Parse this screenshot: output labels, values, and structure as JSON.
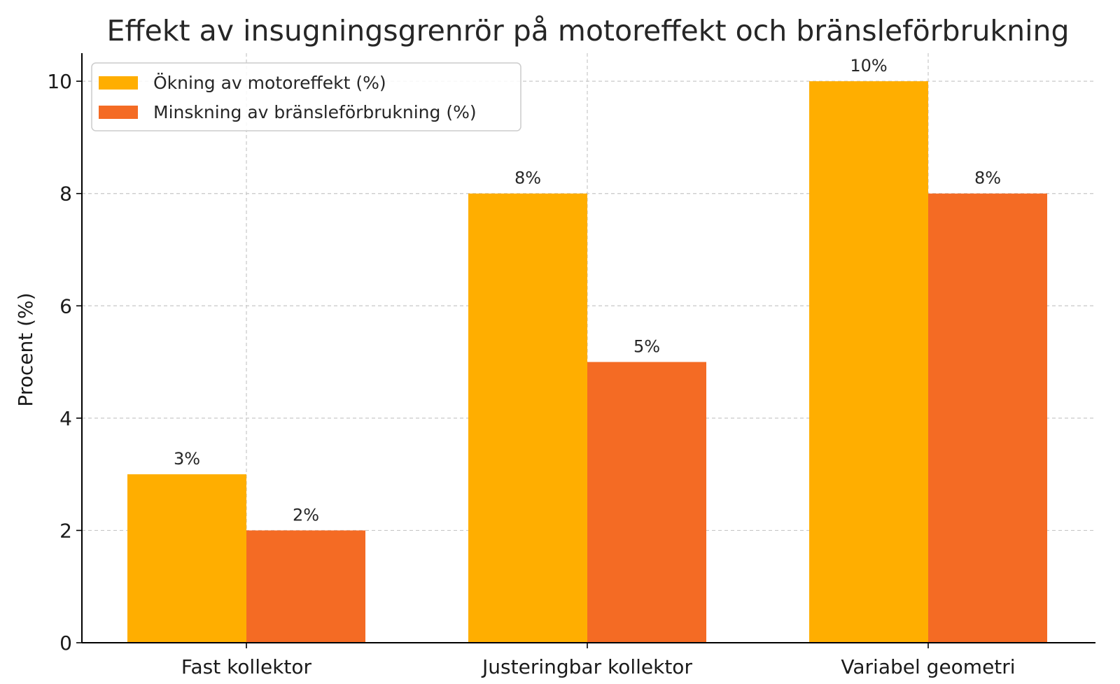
{
  "chart_data": {
    "type": "bar",
    "title": "Effekt av insugningsgrenrör på motoreffekt och bränsleförbrukning",
    "xlabel": "",
    "ylabel": "Procent (%)",
    "categories": [
      "Fast kollektor",
      "Justeringbar kollektor",
      "Variabel geometri"
    ],
    "series": [
      {
        "name": "Ökning av motoreffekt (%)",
        "values": [
          3,
          8,
          10
        ],
        "labels": [
          "3%",
          "8%",
          "10%"
        ],
        "color": "#FFAE00"
      },
      {
        "name": "Minskning av bränsleförbrukning (%)",
        "values": [
          2,
          5,
          8
        ],
        "labels": [
          "2%",
          "5%",
          "8%"
        ],
        "color": "#F46B24"
      }
    ],
    "ylim": [
      0,
      10.5
    ],
    "yticks": [
      0,
      2,
      4,
      6,
      8,
      10
    ],
    "grid": true,
    "legend": "top-left"
  }
}
